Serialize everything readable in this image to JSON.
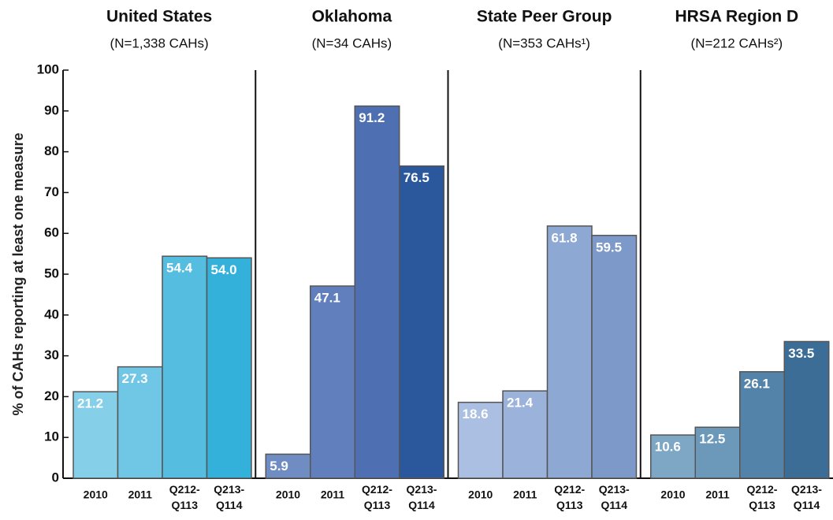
{
  "chart_data": {
    "type": "bar",
    "ylabel": "% of CAHs reporting at least one measure",
    "ylim": [
      0,
      100
    ],
    "yticks": [
      0,
      10,
      20,
      30,
      40,
      50,
      60,
      70,
      80,
      90,
      100
    ],
    "panels": [
      {
        "title": "United States",
        "subtitle": "(N=1,338 CAHs)",
        "categories": [
          "2010",
          "2011",
          "Q212-Q113",
          "Q213-Q114"
        ],
        "values": [
          21.2,
          27.3,
          54.4,
          54.0
        ],
        "value_labels": [
          "21.2",
          "27.3",
          "54.4",
          "54.0"
        ],
        "colors": [
          "#86cfe9",
          "#70c7e5",
          "#55bde0",
          "#33b1da"
        ]
      },
      {
        "title": "Oklahoma",
        "subtitle": "(N=34 CAHs)",
        "categories": [
          "2010",
          "2011",
          "Q212-Q113",
          "Q213-Q114"
        ],
        "values": [
          5.9,
          47.1,
          91.2,
          76.5
        ],
        "value_labels": [
          "5.9",
          "47.1",
          "91.2",
          "76.5"
        ],
        "colors": [
          "#6f8cc3",
          "#617fbd",
          "#4e70b3",
          "#2b579c"
        ]
      },
      {
        "title": "State Peer Group",
        "subtitle": "(N=353 CAHs¹)",
        "categories": [
          "2010",
          "2011",
          "Q212-Q113",
          "Q213-Q114"
        ],
        "values": [
          18.6,
          21.4,
          61.8,
          59.5
        ],
        "value_labels": [
          "18.6",
          "21.4",
          "61.8",
          "59.5"
        ],
        "colors": [
          "#aabfe1",
          "#9bb2da",
          "#8ea8d4",
          "#7c99c9"
        ]
      },
      {
        "title": "HRSA Region D",
        "subtitle": "(N=212 CAHs²)",
        "categories": [
          "2010",
          "2011",
          "Q212-Q113",
          "Q213-Q114"
        ],
        "values": [
          10.6,
          12.5,
          26.1,
          33.5
        ],
        "value_labels": [
          "10.6",
          "12.5",
          "26.1",
          "33.5"
        ],
        "colors": [
          "#7ea7c5",
          "#6c98ba",
          "#5383a9",
          "#3b6d96"
        ]
      }
    ]
  }
}
